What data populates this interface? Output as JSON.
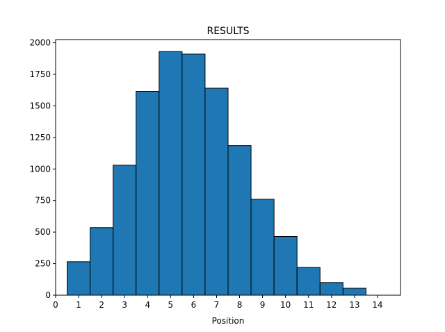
{
  "chart_data": {
    "type": "bar",
    "title": "RESULTS",
    "xlabel": "Position",
    "ylabel": "",
    "x": [
      1,
      2,
      3,
      4,
      5,
      6,
      7,
      8,
      9,
      10,
      11,
      12,
      13
    ],
    "values": [
      265,
      535,
      1030,
      1615,
      1930,
      1910,
      1640,
      1185,
      760,
      465,
      220,
      100,
      55
    ],
    "bar_width": 1,
    "xlim": [
      0,
      15
    ],
    "ylim": [
      0,
      2025
    ],
    "xticks": [
      "0",
      "1",
      "2",
      "3",
      "4",
      "5",
      "6",
      "7",
      "8",
      "9",
      "10",
      "11",
      "12",
      "13",
      "14"
    ],
    "yticks": [
      "0",
      "250",
      "500",
      "750",
      "1000",
      "1250",
      "1500",
      "1750",
      "2000"
    ],
    "grid": false,
    "bar_color": "#1f77b4",
    "edge_color": "#000000"
  }
}
